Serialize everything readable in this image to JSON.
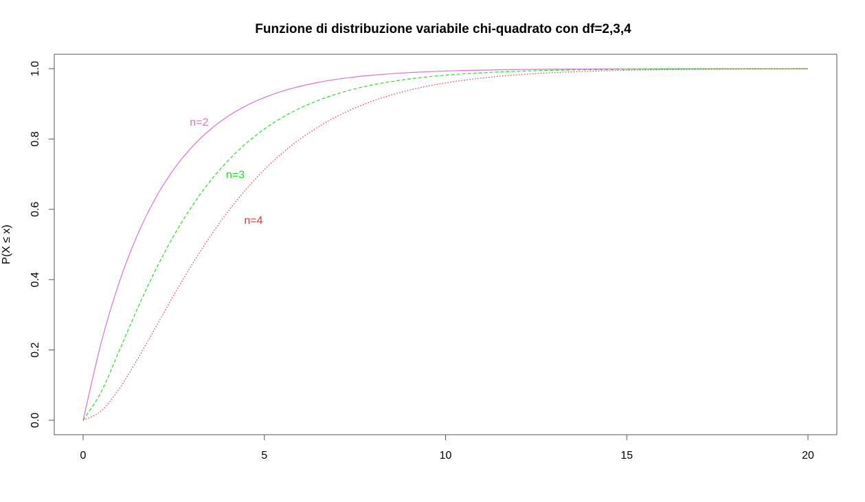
{
  "chart_data": {
    "type": "line",
    "title": "Funzione di distribuzione variabile chi-quadrato con df=2,3,4",
    "xlabel": "",
    "ylabel": "P(X ≤ x)",
    "xlim": [
      0,
      20
    ],
    "ylim": [
      0,
      1
    ],
    "xticks": [
      0,
      5,
      10,
      15,
      20
    ],
    "yticks": [
      0.0,
      0.2,
      0.4,
      0.6,
      0.8,
      1.0
    ],
    "xtick_labels": [
      "0",
      "5",
      "10",
      "15",
      "20"
    ],
    "ytick_labels": [
      "0.0",
      "0.2",
      "0.4",
      "0.6",
      "0.8",
      "1.0"
    ],
    "grid": false,
    "x": [
      0,
      0.5,
      1,
      1.5,
      2,
      2.5,
      3,
      3.5,
      4,
      4.5,
      5,
      5.5,
      6,
      6.5,
      7,
      7.5,
      8,
      8.5,
      9,
      9.5,
      10,
      10.5,
      11,
      11.5,
      12,
      12.5,
      13,
      13.5,
      14,
      14.5,
      15,
      15.5,
      16,
      16.5,
      17,
      17.5,
      18,
      18.5,
      19,
      19.5,
      20
    ],
    "series": [
      {
        "df": 2,
        "color": "#DA70D6",
        "dash": "solid",
        "values": [
          0.0,
          0.2212,
          0.3935,
          0.5276,
          0.6321,
          0.7135,
          0.7769,
          0.8262,
          0.8647,
          0.8946,
          0.9179,
          0.9361,
          0.9502,
          0.9612,
          0.9698,
          0.9765,
          0.9817,
          0.9857,
          0.9889,
          0.9913,
          0.9933,
          0.9948,
          0.9959,
          0.9968,
          0.9975,
          0.9981,
          0.9985,
          0.9988,
          0.9991,
          0.9993,
          0.9994,
          0.9996,
          0.9997,
          0.9997,
          0.9998,
          0.9998,
          0.9999,
          0.9999,
          0.9999,
          0.9999,
          1.0
        ]
      },
      {
        "df": 3,
        "color": "#22DD22",
        "dash": "dashed",
        "values": [
          0.0,
          0.0811,
          0.1987,
          0.3177,
          0.4276,
          0.5247,
          0.6084,
          0.6792,
          0.7385,
          0.7877,
          0.8282,
          0.8614,
          0.8884,
          0.9103,
          0.9281,
          0.9425,
          0.954,
          0.9633,
          0.9707,
          0.9767,
          0.9814,
          0.9852,
          0.9883,
          0.9907,
          0.9926,
          0.9942,
          0.9954,
          0.9964,
          0.9971,
          0.9977,
          0.9982,
          0.9986,
          0.9989,
          0.9991,
          0.9993,
          0.9994,
          0.9996,
          0.9997,
          0.9997,
          0.9998,
          0.9998
        ]
      },
      {
        "df": 4,
        "color": "#E8303A",
        "dash": "dotted",
        "values": [
          0.0,
          0.0265,
          0.0902,
          0.1734,
          0.2642,
          0.3554,
          0.4422,
          0.5221,
          0.594,
          0.6575,
          0.7127,
          0.7603,
          0.8009,
          0.8352,
          0.8641,
          0.8883,
          0.9084,
          0.9251,
          0.9389,
          0.9503,
          0.9596,
          0.9672,
          0.9734,
          0.9785,
          0.9826,
          0.986,
          0.9887,
          0.9909,
          0.9927,
          0.9941,
          0.9953,
          0.9962,
          0.997,
          0.9976,
          0.9981,
          0.9985,
          0.9988,
          0.999,
          0.9992,
          0.9994,
          0.9995
        ]
      }
    ],
    "annotations": [
      {
        "text": "n=2",
        "x": 3.2,
        "y": 0.85,
        "color": "#DA70D6"
      },
      {
        "text": "n=3",
        "x": 4.2,
        "y": 0.7,
        "color": "#22DD22"
      },
      {
        "text": "n=4",
        "x": 4.7,
        "y": 0.57,
        "color": "#E8303A"
      }
    ]
  }
}
